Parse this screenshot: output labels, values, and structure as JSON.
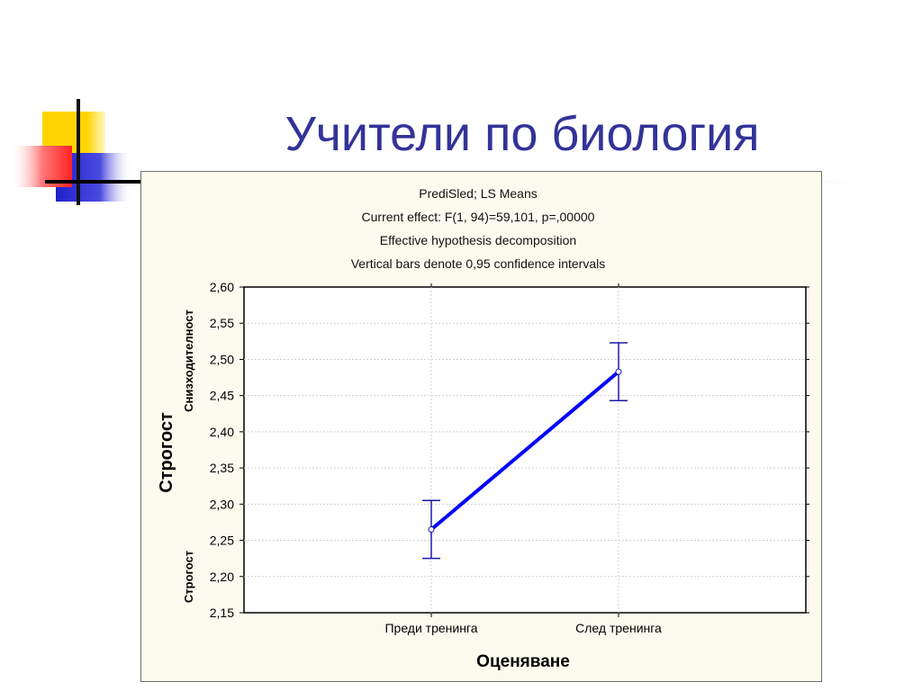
{
  "slide": {
    "title": "Учители по биология"
  },
  "colors": {
    "title": "#333399",
    "panel_bg": "#fcfbee",
    "series_line": "#0000ff",
    "error_bar": "#1a1aa6",
    "logo_yellow": "#ffd400",
    "logo_red": "#ff3333",
    "logo_blue": "#2222cc"
  },
  "chart_data": {
    "type": "line",
    "header": [
      "PrediSled; LS Means",
      "Current effect: F(1, 94)=59,101, p=,00000",
      "Effective hypothesis decomposition",
      "Vertical bars denote 0,95 confidence intervals"
    ],
    "categories": [
      "Преди тренинга",
      "След тренинга"
    ],
    "series": [
      {
        "values": [
          2.265,
          2.483
        ],
        "ci_lower": [
          2.225,
          2.443
        ],
        "ci_upper": [
          2.305,
          2.523
        ]
      }
    ],
    "xlabel": "Оценяване",
    "ylabel": "Строгост",
    "ylabel_top": "Снизходителност",
    "ylabel_bottom": "Строгост",
    "ylim": [
      2.15,
      2.6
    ],
    "yticks": [
      2.15,
      2.2,
      2.25,
      2.3,
      2.35,
      2.4,
      2.45,
      2.5,
      2.55,
      2.6
    ],
    "ytick_labels": [
      "2,15",
      "2,20",
      "2,25",
      "2,30",
      "2,35",
      "2,40",
      "2,45",
      "2,50",
      "2,55",
      "2,60"
    ],
    "grid": true
  }
}
